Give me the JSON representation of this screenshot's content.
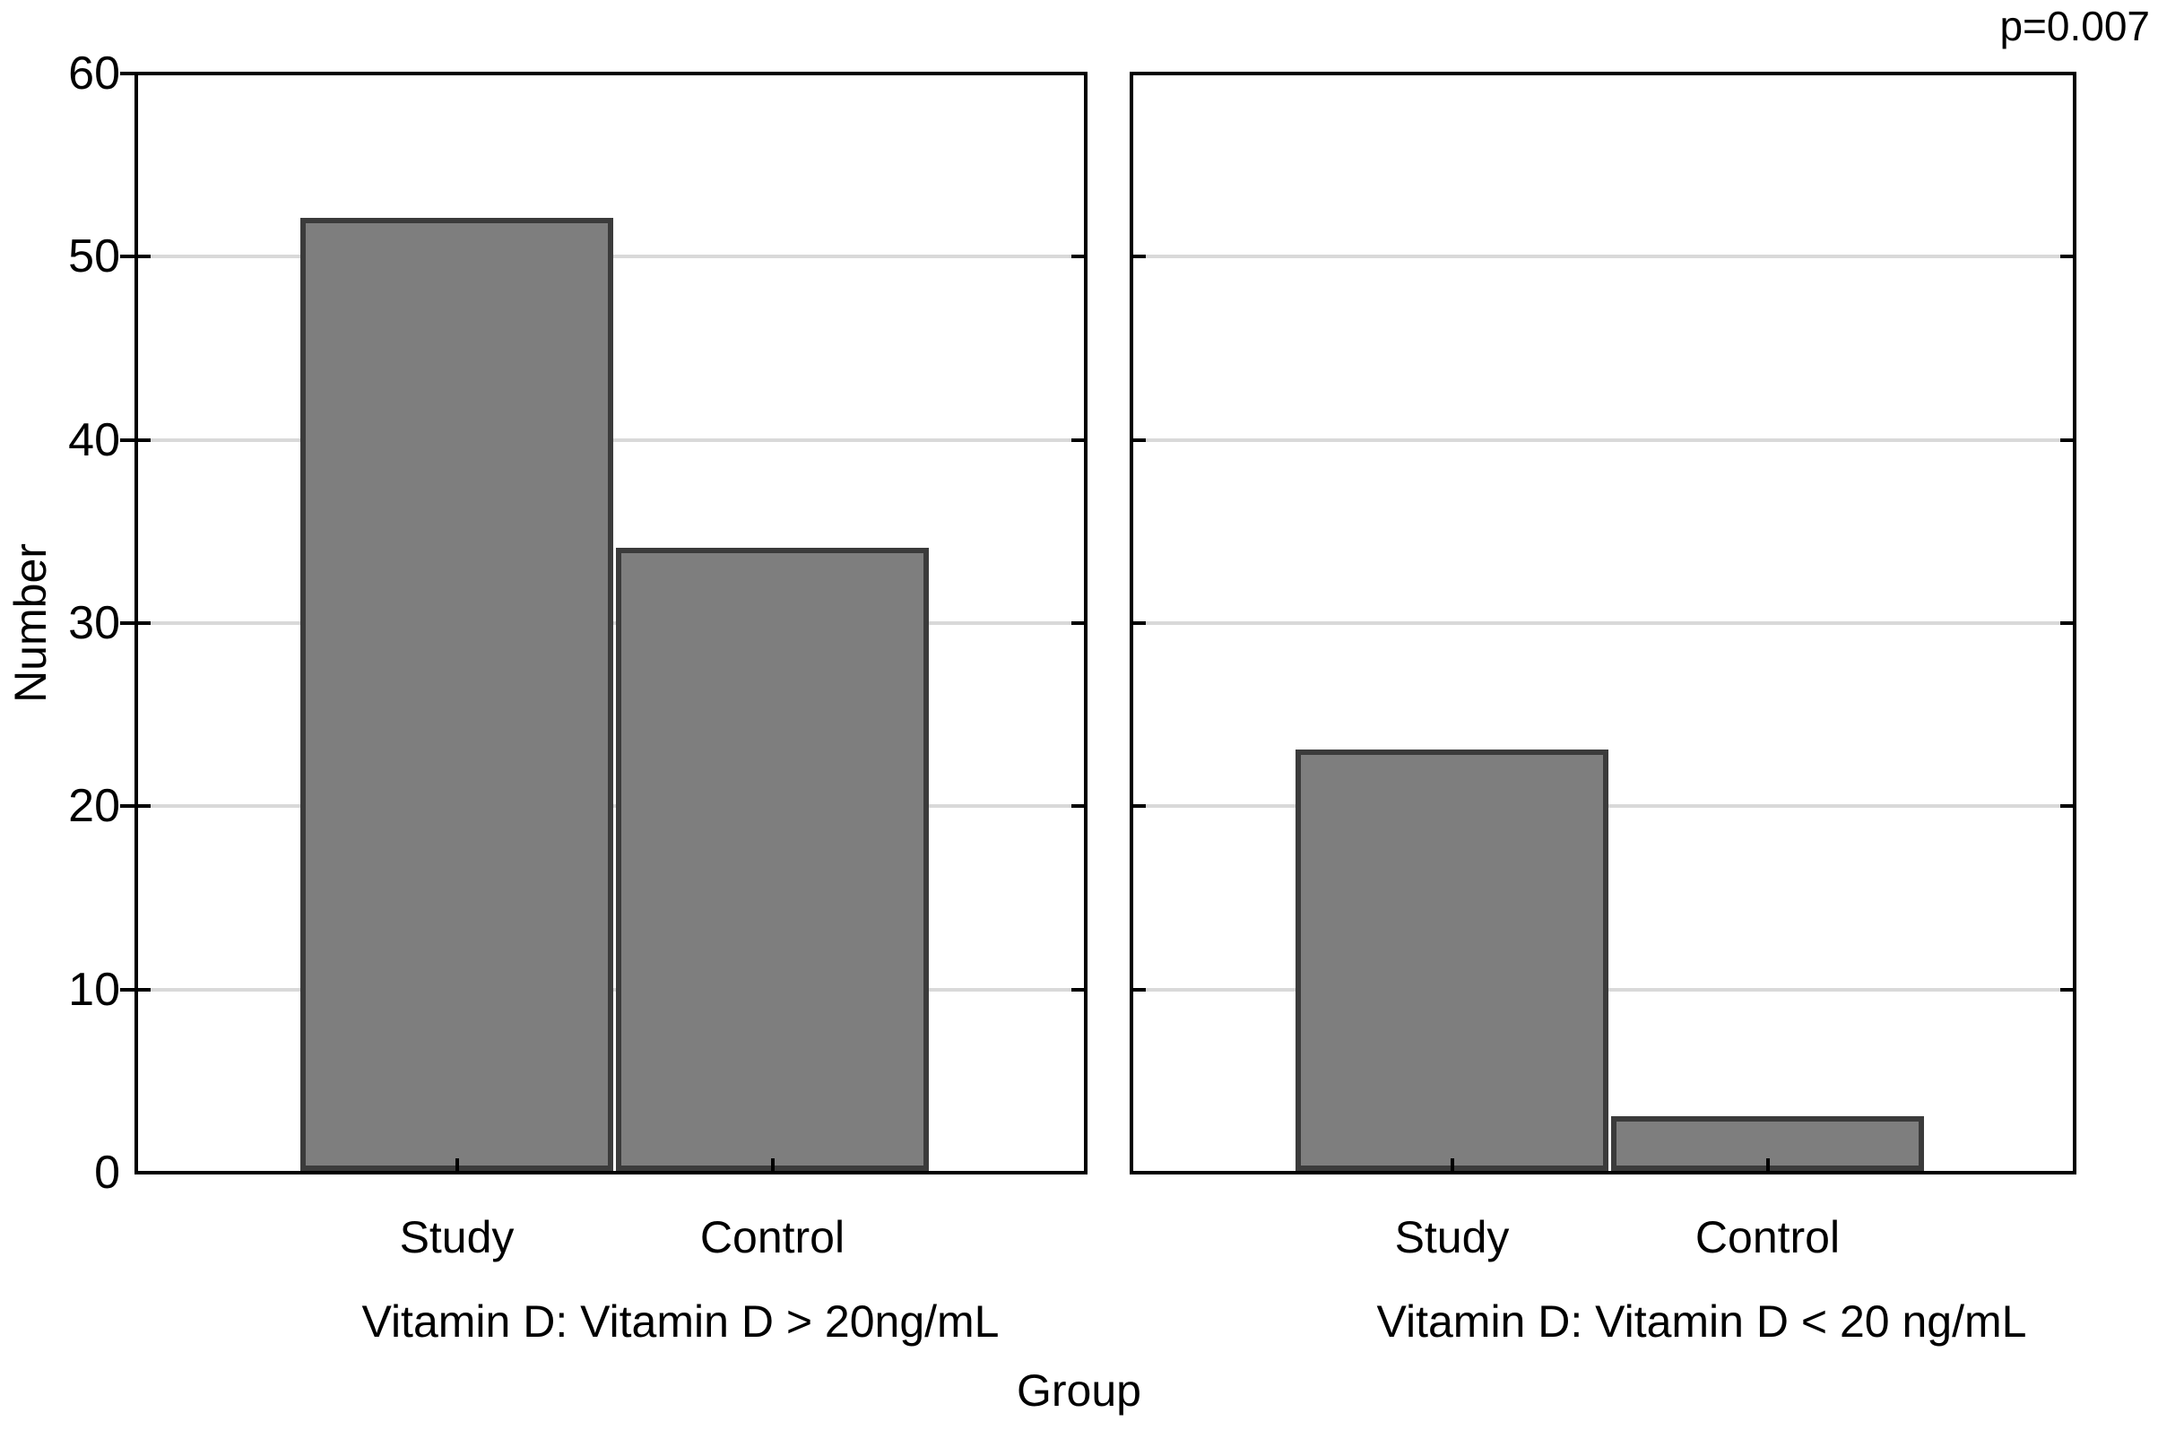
{
  "chart_data": {
    "type": "bar",
    "title": "",
    "annotation": "p=0.007",
    "ylabel": "Number",
    "xlabel": "Group",
    "ylim": [
      0,
      60
    ],
    "yticks": [
      0,
      10,
      20,
      30,
      40,
      50,
      60
    ],
    "grid": "horizontal",
    "legend": "none",
    "bar_fill_color": "#7e7e7e",
    "bar_border_color": "#3b3b3b",
    "gridline_color": "#d9d9d9",
    "frame_color": "#000000",
    "panels": [
      {
        "title": "Vitamin D: Vitamin D > 20ng/mL",
        "categories": [
          "Study",
          "Control"
        ],
        "values": [
          52,
          34
        ]
      },
      {
        "title": "Vitamin D: Vitamin D < 20 ng/mL",
        "categories": [
          "Study",
          "Control"
        ],
        "values": [
          23,
          3
        ]
      }
    ]
  }
}
